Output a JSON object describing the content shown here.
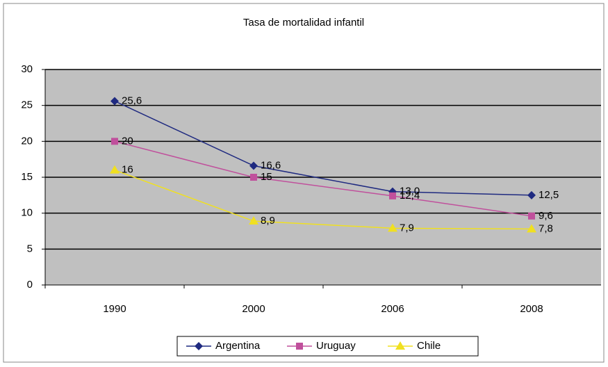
{
  "chart_data": {
    "type": "line",
    "title": "Tasa de mortalidad infantil",
    "categories": [
      "1990",
      "2000",
      "2006",
      "2008"
    ],
    "series": [
      {
        "name": "Argentina",
        "color": "#1f2a80",
        "marker": "diamond",
        "values": [
          25.6,
          16.6,
          13,
          12.5
        ],
        "value_labels": [
          "25,6",
          "16,6",
          "13,0",
          "12,5"
        ]
      },
      {
        "name": "Uruguay",
        "color": "#c0509c",
        "marker": "square",
        "values": [
          20,
          15,
          12.4,
          9.6
        ],
        "value_labels": [
          "20",
          "15",
          "12,4",
          "9,6"
        ]
      },
      {
        "name": "Chile",
        "color": "#f0e020",
        "marker": "triangle",
        "values": [
          16,
          8.9,
          7.9,
          7.8
        ],
        "value_labels": [
          "16",
          "8,9",
          "7,9",
          "7,8"
        ]
      }
    ],
    "ylim": [
      0,
      30
    ],
    "yticks": [
      0,
      5,
      10,
      15,
      20,
      25,
      30
    ],
    "grid": true,
    "legend": "bottom"
  }
}
